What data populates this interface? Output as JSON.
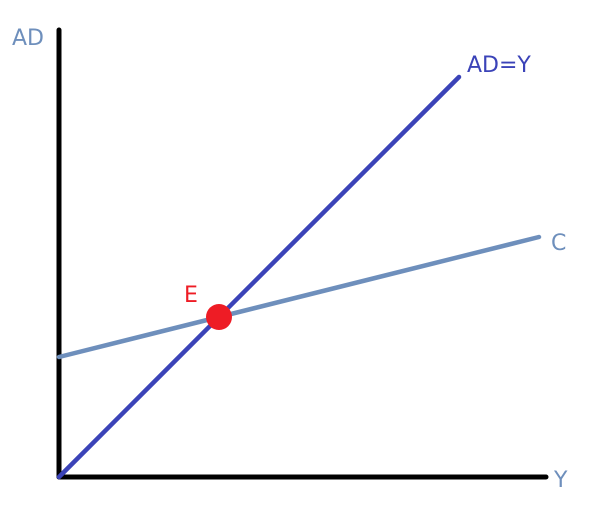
{
  "diagram": {
    "axis_labels": {
      "y": "AD",
      "x": "Y"
    },
    "lines": [
      {
        "id": "ad-equals-y",
        "label": "AD=Y",
        "color": "#3b43b8",
        "from": [
          0,
          0
        ],
        "to": [
          10,
          10
        ]
      },
      {
        "id": "consumption",
        "label": "C",
        "color": "#6e8fbc",
        "from": [
          0,
          3
        ],
        "to": [
          12,
          6
        ]
      }
    ],
    "equilibrium": {
      "label": "E",
      "point": [
        4,
        4
      ],
      "color": "#ee1c25"
    },
    "colors": {
      "axis": "#000000",
      "axis_label": "#6e8fbc",
      "equilibrium_label": "#ee1c25"
    }
  }
}
